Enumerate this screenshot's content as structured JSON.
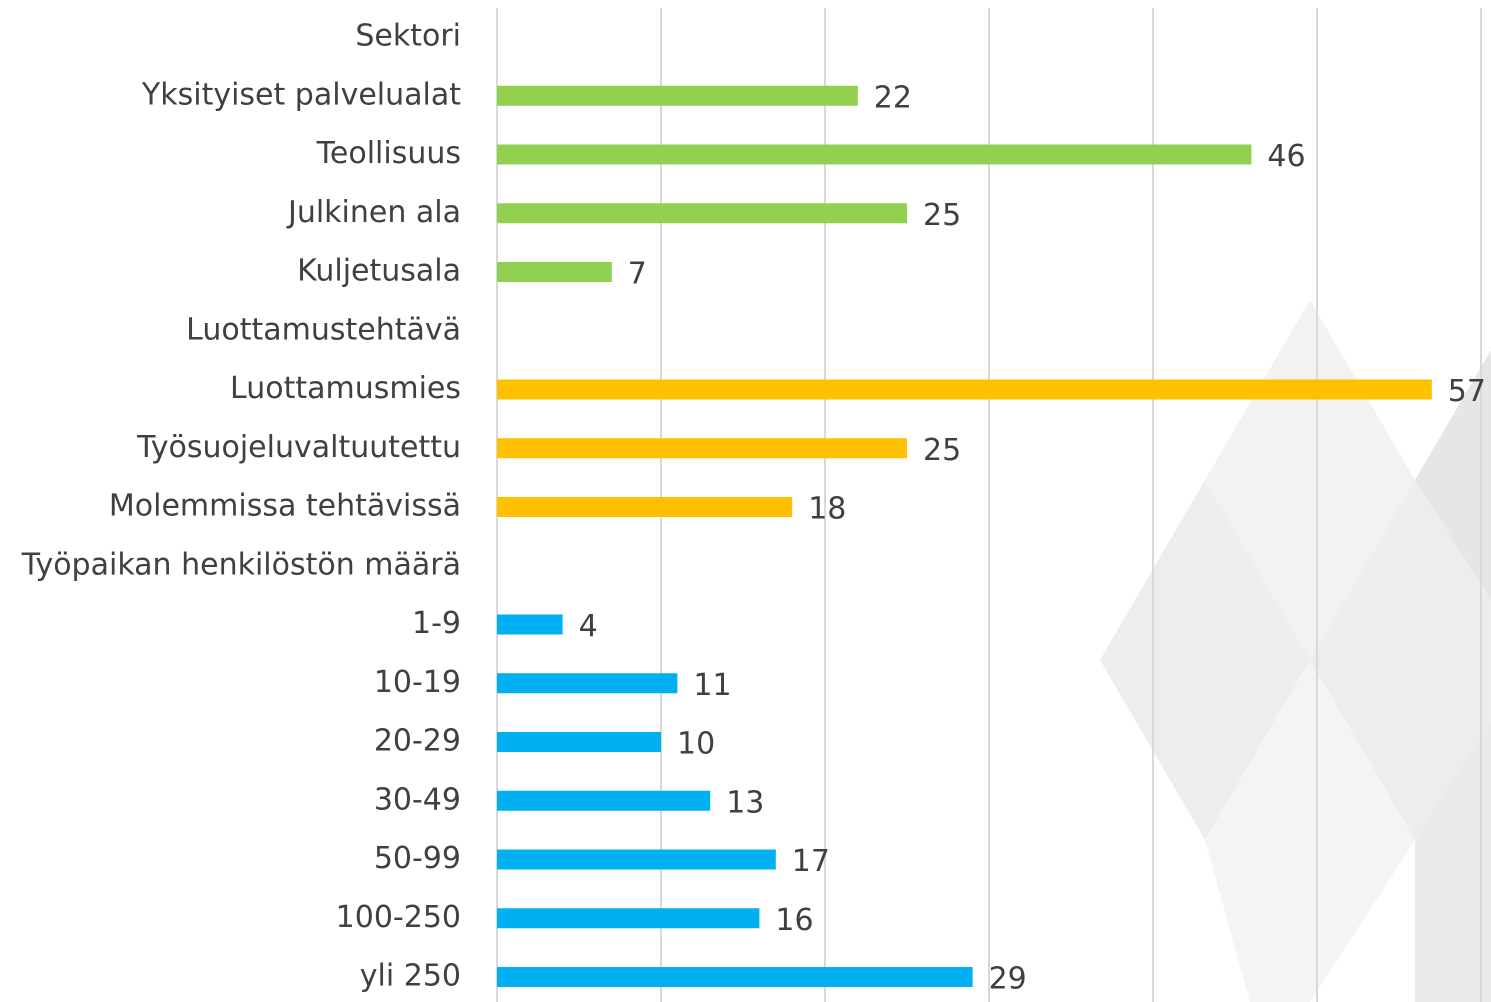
{
  "chart_data": {
    "type": "hbar",
    "categories": [
      "Sektori",
      "Yksityiset palvelualat",
      "Teollisuus",
      "Julkinen ala",
      "Kuljetusala",
      "Luottamustehtävä",
      "Luottamusmies",
      "Työsuojeluvaltuutettu",
      "Molemmissa tehtävissä",
      "Työpaikan henkilöstön määrä",
      "1-9",
      "10-19",
      "20-29",
      "30-49",
      "50-99",
      "100-250",
      "yli 250"
    ],
    "values": [
      null,
      22,
      46,
      25,
      7,
      null,
      57,
      25,
      18,
      null,
      4,
      11,
      10,
      13,
      17,
      16,
      29
    ],
    "colors": [
      null,
      "#92d050",
      "#92d050",
      "#92d050",
      "#92d050",
      null,
      "#ffc000",
      "#ffc000",
      "#ffc000",
      null,
      "#00b0f0",
      "#00b0f0",
      "#00b0f0",
      "#00b0f0",
      "#00b0f0",
      "#00b0f0",
      "#00b0f0"
    ],
    "xlim": [
      0,
      60
    ],
    "xticks": [
      0,
      10,
      20,
      30,
      40,
      50,
      60
    ],
    "grid": true
  }
}
